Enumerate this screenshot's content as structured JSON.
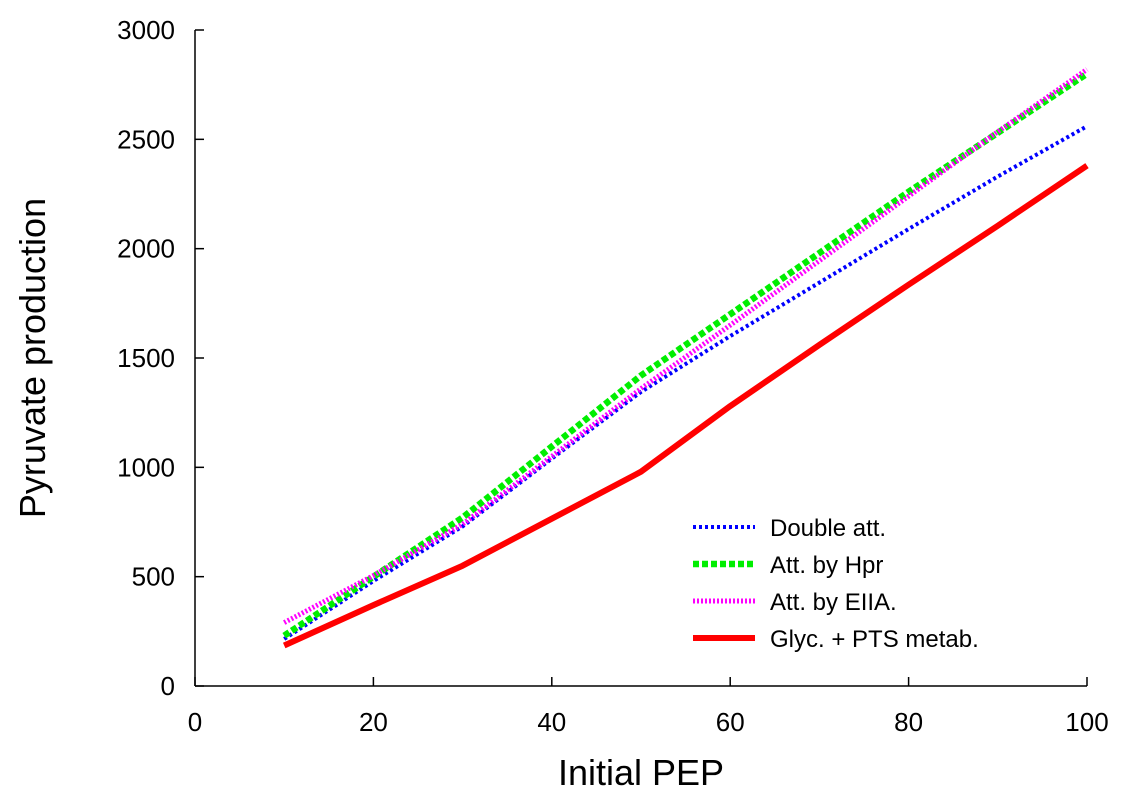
{
  "chart_data": {
    "type": "line",
    "title": "",
    "xlabel": "Initial PEP",
    "ylabel": "Pyruvate production",
    "xlim": [
      0,
      100
    ],
    "ylim": [
      0,
      3000
    ],
    "xticks": [
      0,
      20,
      40,
      60,
      80,
      100
    ],
    "yticks": [
      0,
      500,
      1000,
      1500,
      2000,
      2500,
      3000
    ],
    "grid": false,
    "legend_position": "bottom-right",
    "series": [
      {
        "name": "Double att.",
        "color": "#0000ff",
        "style": "dotted",
        "x": [
          10,
          20,
          30,
          40,
          50,
          60,
          70,
          80,
          90,
          100
        ],
        "y": [
          215,
          480,
          730,
          1040,
          1345,
          1600,
          1845,
          2090,
          2330,
          2560
        ]
      },
      {
        "name": "Att. by Hpr",
        "color": "#00ee00",
        "style": "dashed",
        "x": [
          10,
          20,
          30,
          40,
          50,
          60,
          70,
          80,
          90,
          100
        ],
        "y": [
          230,
          500,
          770,
          1095,
          1420,
          1700,
          1980,
          2260,
          2530,
          2800
        ]
      },
      {
        "name": "Att. by EIIA.",
        "color": "#ff00ff",
        "style": "dotted-thick",
        "x": [
          10,
          20,
          30,
          40,
          50,
          60,
          70,
          80,
          90,
          100
        ],
        "y": [
          290,
          505,
          740,
          1050,
          1360,
          1650,
          1945,
          2240,
          2535,
          2820
        ]
      },
      {
        "name": "Glyc. + PTS metab.",
        "color": "#ff0000",
        "style": "solid",
        "x": [
          10,
          20,
          30,
          40,
          50,
          60,
          70,
          80,
          90,
          100
        ],
        "y": [
          185,
          370,
          550,
          765,
          980,
          1280,
          1560,
          1835,
          2105,
          2380
        ]
      }
    ]
  }
}
